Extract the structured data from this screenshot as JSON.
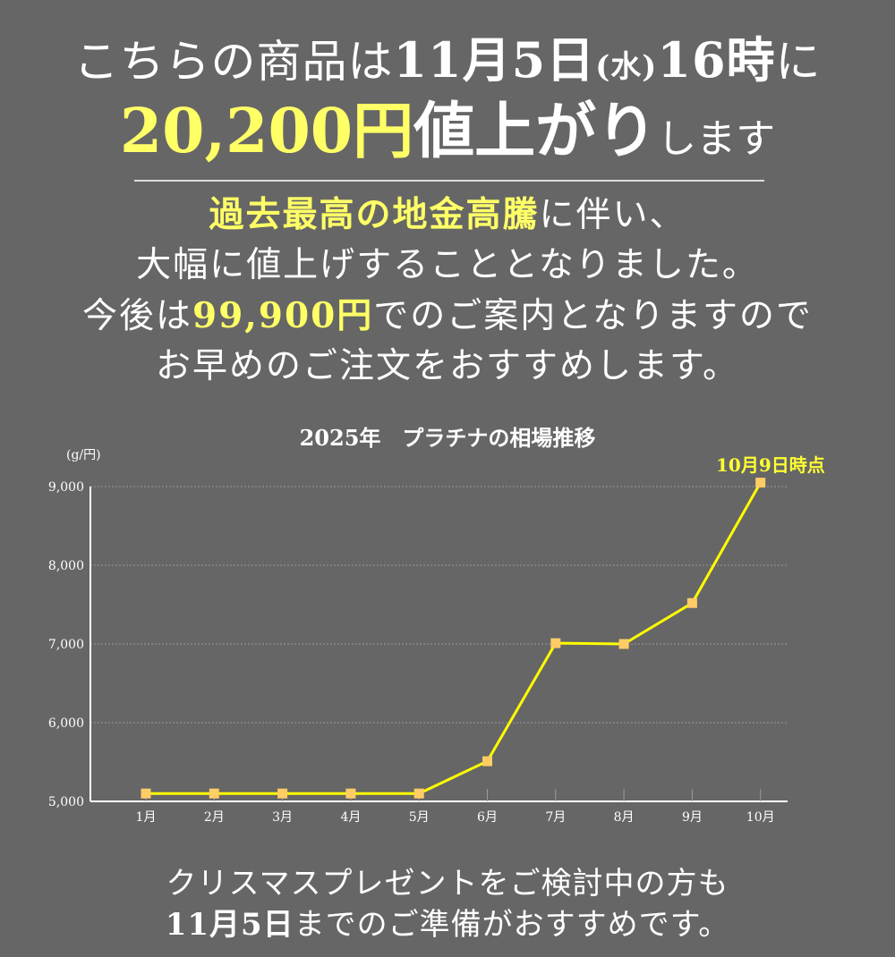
{
  "headline": {
    "line1_pre": "こちらの商品は",
    "line1_date": "11月5日",
    "line1_weekday": "(水)",
    "line1_time": "16時",
    "line1_post": "に",
    "line2_price": "20,200円",
    "line2_up": "値上がり",
    "line2_tail": "します"
  },
  "body": {
    "line1_hl": "過去最高の地金高騰",
    "line1_rest": "に伴い、",
    "line2": "大幅に値上げすることとなりました。",
    "line3_pre": "今後は",
    "line3_price": "99,900円",
    "line3_post": "でのご案内となりますので",
    "line4": "お早めのご注文をおすすめします。"
  },
  "colors": {
    "background": "#666666",
    "highlight": "#ffff66",
    "line": "#ffff00",
    "marker": "#ffcc66",
    "text": "#ffffff"
  },
  "chart_data": {
    "type": "line",
    "title": "2025年　プラチナの相場推移",
    "ylabel": "(g/円)",
    "xlabel": "",
    "categories": [
      "1月",
      "2月",
      "3月",
      "4月",
      "5月",
      "6月",
      "7月",
      "8月",
      "9月",
      "10月"
    ],
    "series": [
      {
        "name": "プラチナ",
        "values": [
          5100,
          5100,
          5100,
          5100,
          5100,
          5510,
          7010,
          7000,
          7520,
          9050
        ]
      }
    ],
    "yticks": [
      "5,000",
      "6,000",
      "7,000",
      "8,000",
      "9,000"
    ],
    "ylim": [
      5000,
      9000
    ],
    "grid": true,
    "annotation": "10月9日時点"
  },
  "footer": {
    "line1": "クリスマスプレゼントをご検討中の方も",
    "line2_date": "11月5日",
    "line2_rest": "までのご準備がおすすめです。"
  }
}
